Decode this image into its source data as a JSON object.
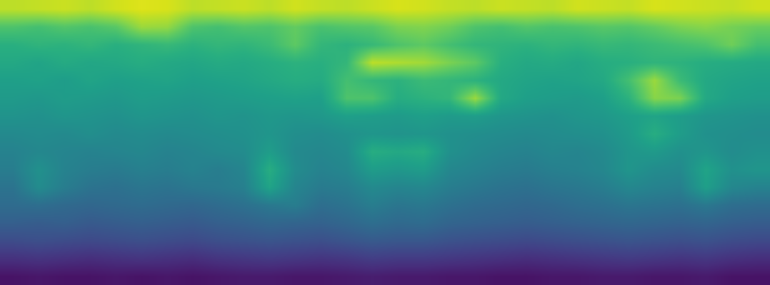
{
  "chart_data": {
    "type": "heatmap",
    "color": "viridis",
    "tick_labels": false,
    "grid": false,
    "zlim": [
      0,
      1
    ],
    "cells": [
      [
        0.9,
        0.91,
        0.92,
        0.9,
        0.93,
        0.95,
        0.94,
        0.9,
        0.91,
        0.92,
        0.9,
        0.93,
        0.91,
        0.9,
        0.92,
        0.94,
        0.93,
        0.91,
        0.9,
        0.92,
        0.91,
        0.9,
        0.93,
        0.92,
        0.91,
        0.94,
        0.93,
        0.92,
        0.91,
        0.93
      ],
      [
        0.72,
        0.7,
        0.73,
        0.71,
        0.74,
        0.85,
        0.84,
        0.72,
        0.7,
        0.73,
        0.72,
        0.76,
        0.71,
        0.73,
        0.74,
        0.8,
        0.81,
        0.78,
        0.72,
        0.7,
        0.73,
        0.71,
        0.72,
        0.74,
        0.73,
        0.76,
        0.8,
        0.82,
        0.79,
        0.77
      ],
      [
        0.63,
        0.65,
        0.64,
        0.66,
        0.63,
        0.65,
        0.67,
        0.64,
        0.66,
        0.65,
        0.68,
        0.75,
        0.66,
        0.64,
        0.67,
        0.72,
        0.75,
        0.7,
        0.66,
        0.65,
        0.64,
        0.66,
        0.65,
        0.67,
        0.66,
        0.68,
        0.7,
        0.72,
        0.78,
        0.7
      ],
      [
        0.6,
        0.58,
        0.61,
        0.59,
        0.6,
        0.62,
        0.6,
        0.59,
        0.61,
        0.6,
        0.62,
        0.64,
        0.63,
        0.66,
        0.9,
        0.88,
        0.86,
        0.8,
        0.75,
        0.63,
        0.6,
        0.61,
        0.59,
        0.62,
        0.63,
        0.65,
        0.64,
        0.62,
        0.61,
        0.6
      ],
      [
        0.56,
        0.57,
        0.55,
        0.58,
        0.56,
        0.57,
        0.58,
        0.56,
        0.57,
        0.58,
        0.6,
        0.62,
        0.61,
        0.7,
        0.66,
        0.64,
        0.68,
        0.66,
        0.64,
        0.6,
        0.58,
        0.57,
        0.58,
        0.6,
        0.7,
        0.85,
        0.68,
        0.6,
        0.58,
        0.57
      ],
      [
        0.54,
        0.53,
        0.55,
        0.54,
        0.53,
        0.55,
        0.54,
        0.53,
        0.54,
        0.55,
        0.56,
        0.57,
        0.56,
        0.72,
        0.72,
        0.62,
        0.64,
        0.66,
        0.85,
        0.6,
        0.56,
        0.55,
        0.54,
        0.56,
        0.64,
        0.82,
        0.8,
        0.6,
        0.56,
        0.55
      ],
      [
        0.51,
        0.5,
        0.52,
        0.51,
        0.5,
        0.52,
        0.51,
        0.5,
        0.52,
        0.51,
        0.53,
        0.52,
        0.53,
        0.56,
        0.55,
        0.54,
        0.56,
        0.54,
        0.55,
        0.52,
        0.51,
        0.5,
        0.52,
        0.53,
        0.56,
        0.58,
        0.55,
        0.52,
        0.51,
        0.5
      ],
      [
        0.47,
        0.48,
        0.47,
        0.49,
        0.47,
        0.48,
        0.47,
        0.48,
        0.49,
        0.5,
        0.52,
        0.49,
        0.48,
        0.5,
        0.52,
        0.51,
        0.52,
        0.5,
        0.49,
        0.48,
        0.47,
        0.48,
        0.49,
        0.5,
        0.54,
        0.62,
        0.55,
        0.5,
        0.49,
        0.48
      ],
      [
        0.44,
        0.46,
        0.45,
        0.44,
        0.45,
        0.46,
        0.44,
        0.45,
        0.47,
        0.48,
        0.55,
        0.47,
        0.46,
        0.48,
        0.62,
        0.6,
        0.62,
        0.5,
        0.47,
        0.45,
        0.44,
        0.46,
        0.45,
        0.47,
        0.52,
        0.54,
        0.5,
        0.52,
        0.48,
        0.5
      ],
      [
        0.42,
        0.5,
        0.44,
        0.42,
        0.41,
        0.43,
        0.42,
        0.44,
        0.42,
        0.45,
        0.62,
        0.48,
        0.44,
        0.46,
        0.55,
        0.53,
        0.55,
        0.46,
        0.44,
        0.42,
        0.41,
        0.43,
        0.44,
        0.46,
        0.52,
        0.48,
        0.47,
        0.58,
        0.5,
        0.52
      ],
      [
        0.38,
        0.48,
        0.42,
        0.38,
        0.37,
        0.39,
        0.38,
        0.4,
        0.41,
        0.43,
        0.58,
        0.45,
        0.41,
        0.42,
        0.47,
        0.45,
        0.46,
        0.42,
        0.4,
        0.38,
        0.37,
        0.39,
        0.4,
        0.42,
        0.46,
        0.44,
        0.43,
        0.56,
        0.46,
        0.44
      ],
      [
        0.35,
        0.36,
        0.34,
        0.33,
        0.34,
        0.35,
        0.34,
        0.33,
        0.35,
        0.37,
        0.4,
        0.42,
        0.36,
        0.38,
        0.42,
        0.39,
        0.4,
        0.37,
        0.35,
        0.34,
        0.33,
        0.34,
        0.36,
        0.37,
        0.39,
        0.38,
        0.37,
        0.4,
        0.36,
        0.35
      ],
      [
        0.3,
        0.29,
        0.3,
        0.28,
        0.29,
        0.3,
        0.29,
        0.28,
        0.3,
        0.31,
        0.33,
        0.32,
        0.31,
        0.33,
        0.36,
        0.34,
        0.35,
        0.32,
        0.31,
        0.3,
        0.29,
        0.3,
        0.31,
        0.32,
        0.33,
        0.32,
        0.31,
        0.32,
        0.3,
        0.29
      ],
      [
        0.23,
        0.24,
        0.23,
        0.22,
        0.23,
        0.24,
        0.23,
        0.22,
        0.24,
        0.25,
        0.26,
        0.25,
        0.24,
        0.26,
        0.28,
        0.27,
        0.27,
        0.25,
        0.24,
        0.23,
        0.22,
        0.23,
        0.24,
        0.25,
        0.26,
        0.25,
        0.24,
        0.25,
        0.23,
        0.22
      ],
      [
        0.14,
        0.15,
        0.14,
        0.13,
        0.14,
        0.15,
        0.14,
        0.13,
        0.15,
        0.16,
        0.17,
        0.16,
        0.15,
        0.16,
        0.18,
        0.17,
        0.17,
        0.16,
        0.15,
        0.14,
        0.13,
        0.14,
        0.15,
        0.16,
        0.17,
        0.16,
        0.15,
        0.16,
        0.14,
        0.13
      ],
      [
        0.05,
        0.06,
        0.05,
        0.05,
        0.06,
        0.05,
        0.06,
        0.05,
        0.06,
        0.07,
        0.07,
        0.06,
        0.06,
        0.07,
        0.08,
        0.07,
        0.07,
        0.06,
        0.06,
        0.05,
        0.05,
        0.06,
        0.06,
        0.07,
        0.07,
        0.06,
        0.06,
        0.07,
        0.05,
        0.05
      ]
    ]
  }
}
